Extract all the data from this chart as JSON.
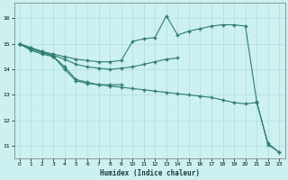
{
  "xlabel": "Humidex (Indice chaleur)",
  "bg_color": "#cdf0f0",
  "grid_color": "#b0dede",
  "line_color": "#2e7d6e",
  "xlim": [
    -0.5,
    23.5
  ],
  "ylim": [
    10.5,
    16.6
  ],
  "xticks": [
    0,
    1,
    2,
    3,
    4,
    5,
    6,
    7,
    8,
    9,
    10,
    11,
    12,
    13,
    14,
    15,
    16,
    17,
    18,
    19,
    20,
    21,
    22,
    23
  ],
  "yticks": [
    11,
    12,
    13,
    14,
    15,
    16
  ],
  "line1_x": [
    0,
    1,
    2,
    3,
    4,
    5,
    6,
    7,
    8,
    9,
    10,
    11,
    12,
    13,
    14,
    15,
    16,
    17,
    18,
    19,
    20,
    21,
    22,
    23
  ],
  "line1_y": [
    15.0,
    14.85,
    14.7,
    14.6,
    14.5,
    14.4,
    14.35,
    14.3,
    14.3,
    14.35,
    15.1,
    15.2,
    15.25,
    16.1,
    15.35,
    15.5,
    15.6,
    15.7,
    15.75,
    15.75,
    15.7,
    12.75,
    11.05,
    10.75
  ],
  "line2_x": [
    0,
    1,
    2,
    3,
    4,
    5,
    6,
    7,
    8,
    9,
    10,
    11,
    12,
    13,
    14
  ],
  "line2_y": [
    15.0,
    14.8,
    14.65,
    14.55,
    14.4,
    14.2,
    14.1,
    14.05,
    14.0,
    14.05,
    14.1,
    14.2,
    14.3,
    14.4,
    14.45
  ],
  "line3_x": [
    0,
    1,
    2,
    3,
    4,
    5,
    6,
    7,
    8,
    9
  ],
  "line3_y": [
    15.0,
    14.75,
    14.6,
    14.5,
    14.1,
    13.6,
    13.5,
    13.4,
    13.4,
    13.4
  ],
  "line4_x": [
    0,
    1,
    2,
    3,
    4,
    5,
    6,
    7,
    8,
    9,
    10,
    11,
    12,
    13,
    14,
    15,
    16,
    17,
    18,
    19,
    20,
    21,
    22,
    23
  ],
  "line4_y": [
    15.0,
    14.85,
    14.7,
    14.5,
    14.0,
    13.55,
    13.45,
    13.4,
    13.35,
    13.3,
    13.25,
    13.2,
    13.15,
    13.1,
    13.05,
    13.0,
    12.95,
    12.9,
    12.8,
    12.7,
    12.65,
    12.7,
    11.1,
    10.75
  ]
}
